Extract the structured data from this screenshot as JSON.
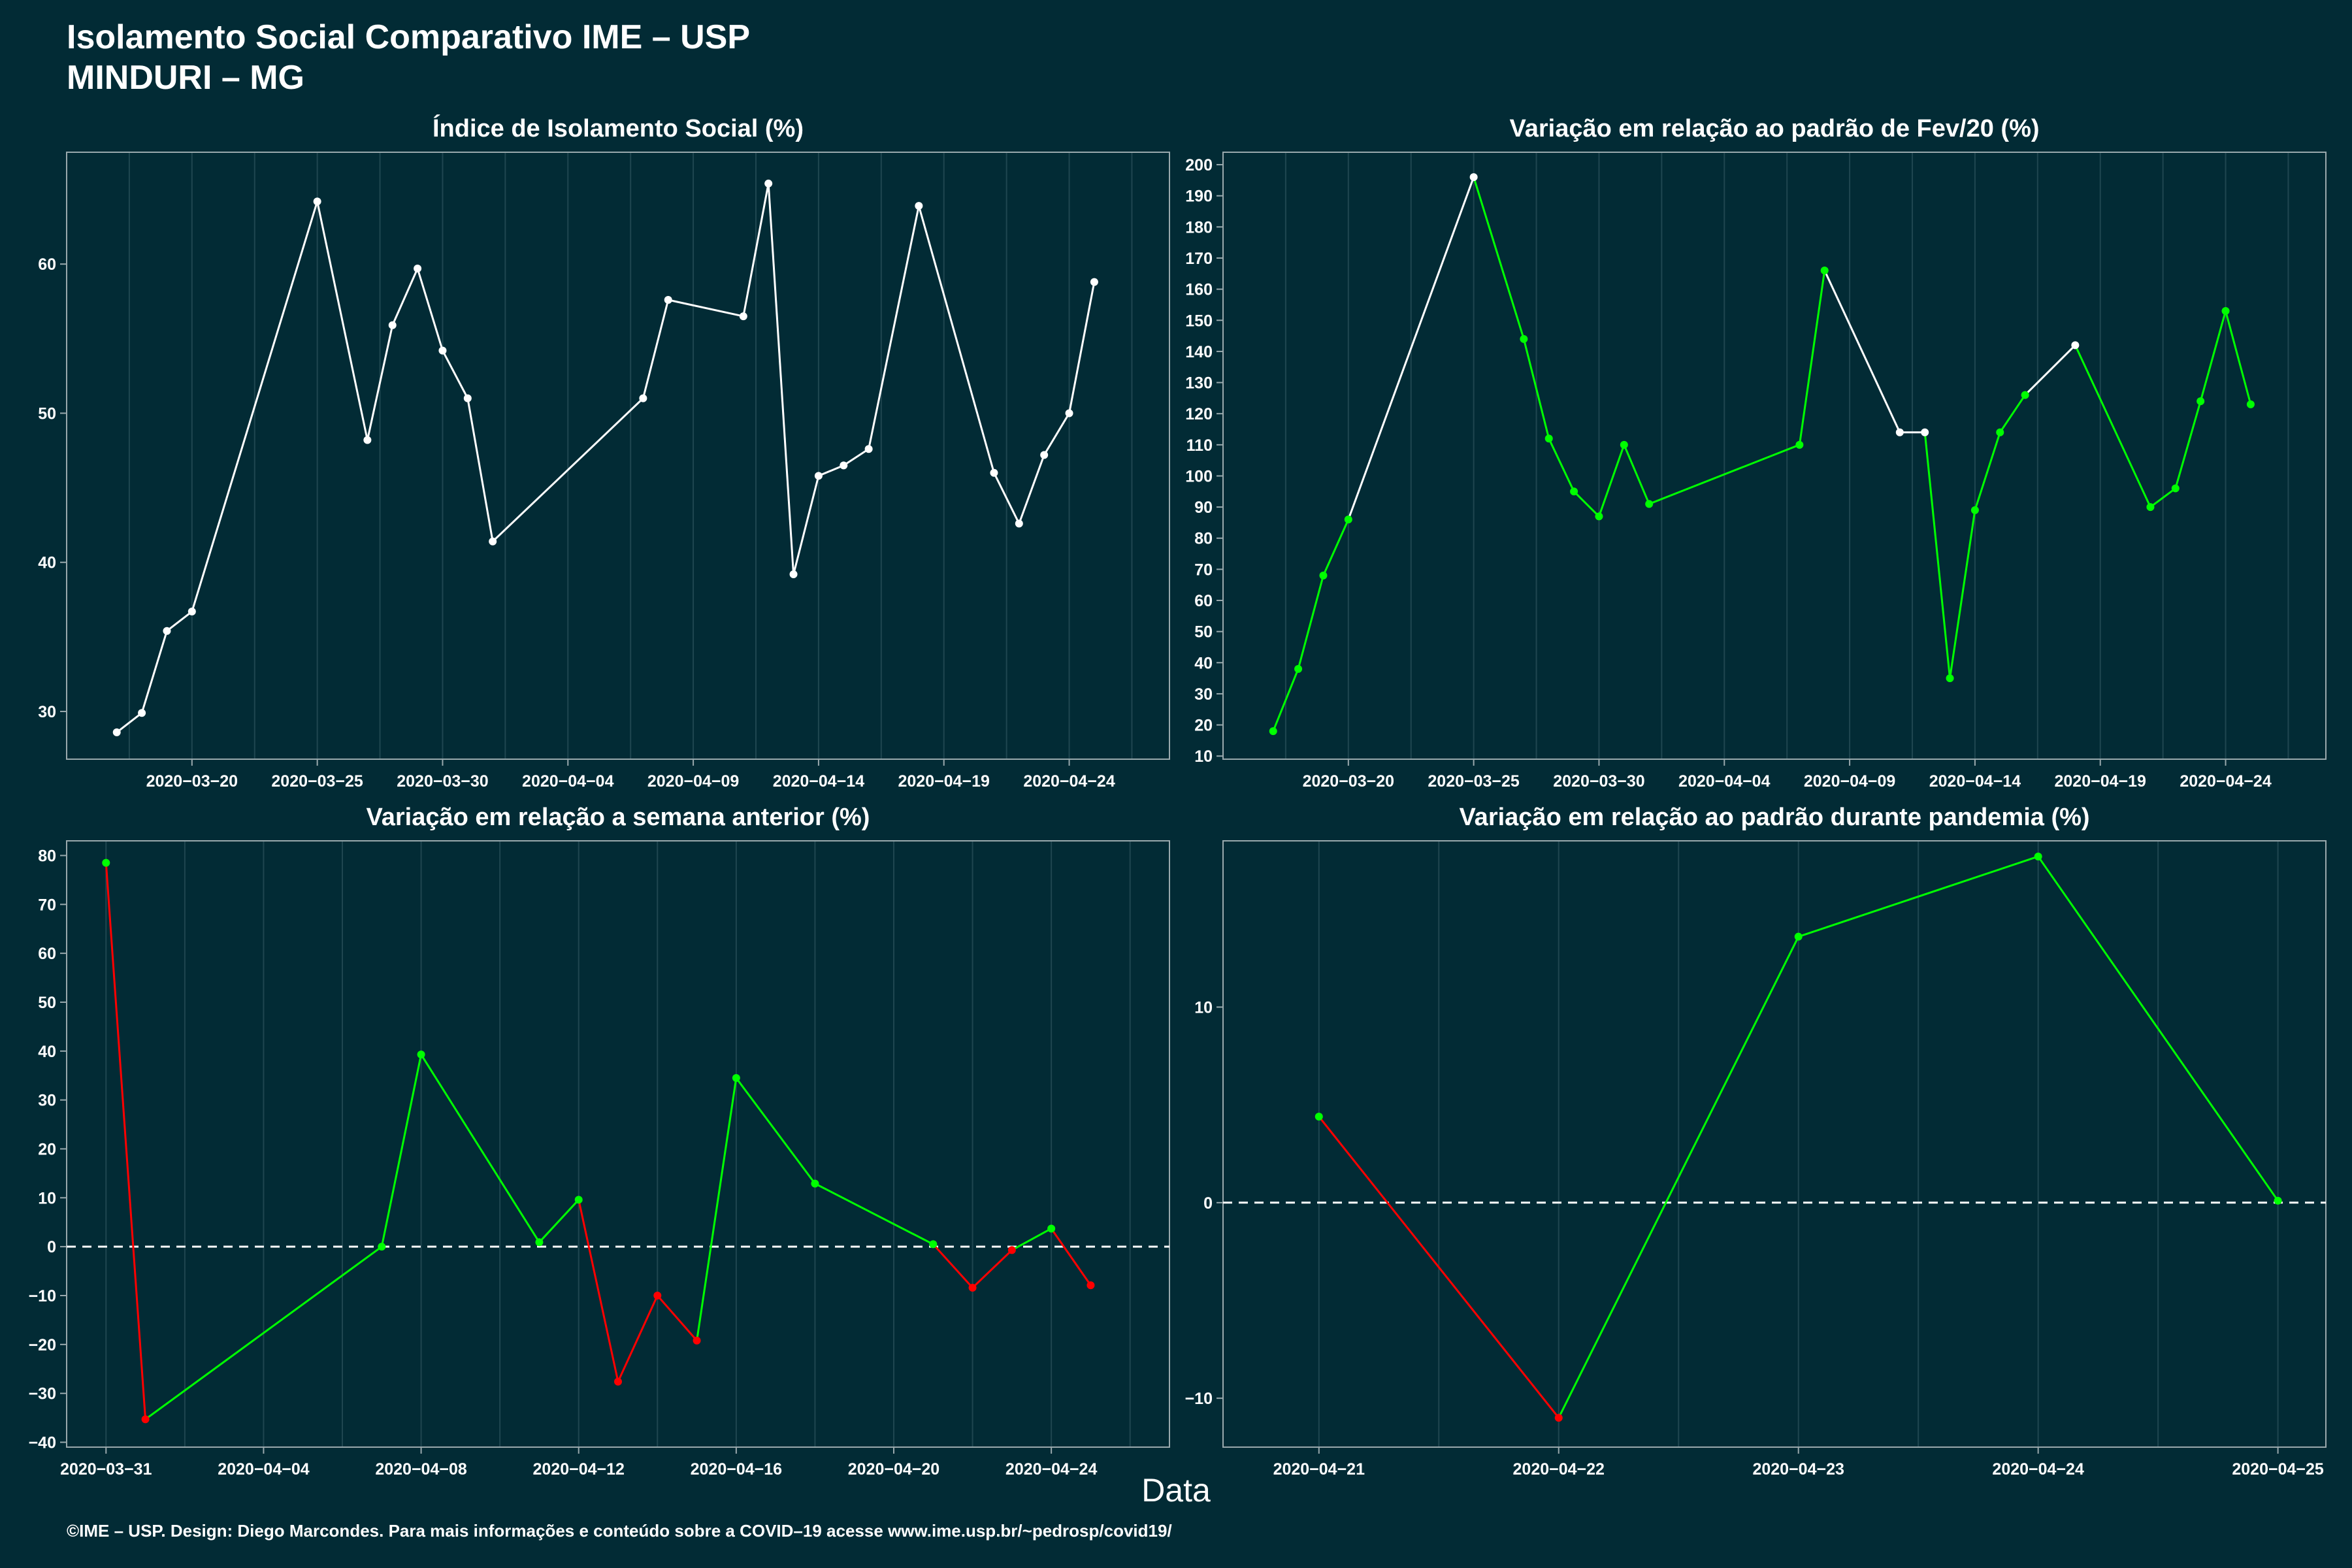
{
  "title_line1": "Isolamento Social Comparativo IME – USP",
  "title_line2": "MINDURI – MG",
  "x_title": "Data",
  "footer": "©IME – USP. Design: Diego Marcondes. Para mais informações e conteúdo sobre a COVID–19 acesse www.ime.usp.br/~pedrosp/covid19/",
  "colors": {
    "background": "#022b35",
    "line": "#ffffff",
    "up": "#00ff00",
    "down": "#ff0000",
    "grid": "#1f4650",
    "axis": "#9aa9ad"
  },
  "chart_data": [
    {
      "type": "line",
      "title": "Índice de Isolamento Social (%)",
      "xlim": [
        "2020-03-15",
        "2020-04-28"
      ],
      "ylim": [
        26.8,
        67.5
      ],
      "xticks": [
        "2020-03-20",
        "2020-03-25",
        "2020-03-30",
        "2020-04-04",
        "2020-04-09",
        "2020-04-14",
        "2020-04-19",
        "2020-04-24"
      ],
      "yticks": [
        30,
        40,
        50,
        60
      ],
      "x": [
        "2020-03-17",
        "2020-03-18",
        "2020-03-19",
        "2020-03-20",
        "2020-03-25",
        "2020-03-27",
        "2020-03-28",
        "2020-03-29",
        "2020-03-30",
        "2020-03-31",
        "2020-04-01",
        "2020-04-07",
        "2020-04-08",
        "2020-04-11",
        "2020-04-12",
        "2020-04-13",
        "2020-04-14",
        "2020-04-15",
        "2020-04-16",
        "2020-04-18",
        "2020-04-21",
        "2020-04-22",
        "2020-04-23",
        "2020-04-24",
        "2020-04-25"
      ],
      "y": [
        28.6,
        29.9,
        35.4,
        36.7,
        64.2,
        48.2,
        55.9,
        59.7,
        54.2,
        51.0,
        41.4,
        51.0,
        57.6,
        56.5,
        65.4,
        39.2,
        45.8,
        46.5,
        47.6,
        63.9,
        46.0,
        42.6,
        47.2,
        50.0,
        58.8
      ],
      "colors": [
        "#ffffff",
        "#ffffff",
        "#ffffff",
        "#ffffff",
        "#ffffff",
        "#ffffff",
        "#ffffff",
        "#ffffff",
        "#ffffff",
        "#ffffff",
        "#ffffff",
        "#ffffff",
        "#ffffff",
        "#ffffff",
        "#ffffff",
        "#ffffff",
        "#ffffff",
        "#ffffff",
        "#ffffff",
        "#ffffff",
        "#ffffff",
        "#ffffff",
        "#ffffff",
        "#ffffff",
        "#ffffff"
      ]
    },
    {
      "type": "line",
      "title": "Variação em relação ao padrão de Fev/20 (%)",
      "xlim": [
        "2020-03-15",
        "2020-04-28"
      ],
      "ylim": [
        9,
        204
      ],
      "xticks": [
        "2020-03-20",
        "2020-03-25",
        "2020-03-30",
        "2020-04-04",
        "2020-04-09",
        "2020-04-14",
        "2020-04-19",
        "2020-04-24"
      ],
      "yticks": [
        10,
        20,
        30,
        40,
        50,
        60,
        70,
        80,
        90,
        100,
        110,
        120,
        130,
        140,
        150,
        160,
        170,
        180,
        190,
        200
      ],
      "x": [
        "2020-03-17",
        "2020-03-18",
        "2020-03-19",
        "2020-03-20",
        "2020-03-25",
        "2020-03-27",
        "2020-03-28",
        "2020-03-29",
        "2020-03-30",
        "2020-03-31",
        "2020-04-01",
        "2020-04-07",
        "2020-04-08",
        "2020-04-11",
        "2020-04-12",
        "2020-04-13",
        "2020-04-14",
        "2020-04-15",
        "2020-04-16",
        "2020-04-18",
        "2020-04-21",
        "2020-04-22",
        "2020-04-23",
        "2020-04-24",
        "2020-04-25"
      ],
      "y": [
        18,
        38,
        68,
        86,
        196,
        144,
        112,
        95,
        87,
        110,
        91,
        110,
        166,
        114,
        114,
        35,
        89,
        114,
        126,
        142,
        90,
        96,
        124,
        153,
        123
      ],
      "colors": [
        "#00ff00",
        "#00ff00",
        "#00ff00",
        "#00ff00",
        "#ffffff",
        "#00ff00",
        "#00ff00",
        "#00ff00",
        "#00ff00",
        "#00ff00",
        "#00ff00",
        "#00ff00",
        "#00ff00",
        "#ffffff",
        "#ffffff",
        "#00ff00",
        "#00ff00",
        "#00ff00",
        "#00ff00",
        "#ffffff",
        "#00ff00",
        "#00ff00",
        "#00ff00",
        "#00ff00",
        "#00ff00"
      ]
    },
    {
      "type": "line",
      "title": "Variação em relação a semana anterior (%)",
      "xlim": [
        "2020-03-30",
        "2020-04-27"
      ],
      "ylim": [
        -41,
        83
      ],
      "xticks": [
        "2020-03-31",
        "2020-04-04",
        "2020-04-08",
        "2020-04-12",
        "2020-04-16",
        "2020-04-20",
        "2020-04-24"
      ],
      "yticks": [
        -40,
        -30,
        -20,
        -10,
        0,
        10,
        20,
        30,
        40,
        50,
        60,
        70,
        80
      ],
      "refline": 0,
      "x": [
        "2020-03-31",
        "2020-04-01",
        "2020-04-07",
        "2020-04-08",
        "2020-04-11",
        "2020-04-12",
        "2020-04-13",
        "2020-04-14",
        "2020-04-15",
        "2020-04-16",
        "2020-04-18",
        "2020-04-21",
        "2020-04-22",
        "2020-04-23",
        "2020-04-24",
        "2020-04-25"
      ],
      "y": [
        78.5,
        -35.3,
        0.0,
        39.3,
        0.9,
        9.6,
        -27.6,
        -10.0,
        -19.2,
        34.5,
        12.9,
        0.5,
        -8.4,
        -0.7,
        3.7,
        -7.9
      ],
      "colors": [
        "#00ff00",
        "#ff0000",
        "#00ff00",
        "#00ff00",
        "#00ff00",
        "#00ff00",
        "#ff0000",
        "#ff0000",
        "#ff0000",
        "#00ff00",
        "#00ff00",
        "#00ff00",
        "#ff0000",
        "#ff0000",
        "#00ff00",
        "#ff0000"
      ]
    },
    {
      "type": "line",
      "title": "Variação em relação ao padrão durante pandemia (%)",
      "xlim": [
        "2020-04-20.6",
        "2020-04-25.2"
      ],
      "ylim": [
        -12.5,
        18.5
      ],
      "xticks": [
        "2020-04-21",
        "2020-04-22",
        "2020-04-23",
        "2020-04-24",
        "2020-04-25"
      ],
      "yticks": [
        -10,
        0,
        10
      ],
      "refline": 0,
      "x": [
        "2020-04-21",
        "2020-04-22",
        "2020-04-23",
        "2020-04-24",
        "2020-04-25"
      ],
      "y": [
        4.4,
        -11.0,
        13.6,
        17.7,
        0.1
      ],
      "colors": [
        "#00ff00",
        "#ff0000",
        "#00ff00",
        "#00ff00",
        "#00ff00"
      ]
    }
  ]
}
